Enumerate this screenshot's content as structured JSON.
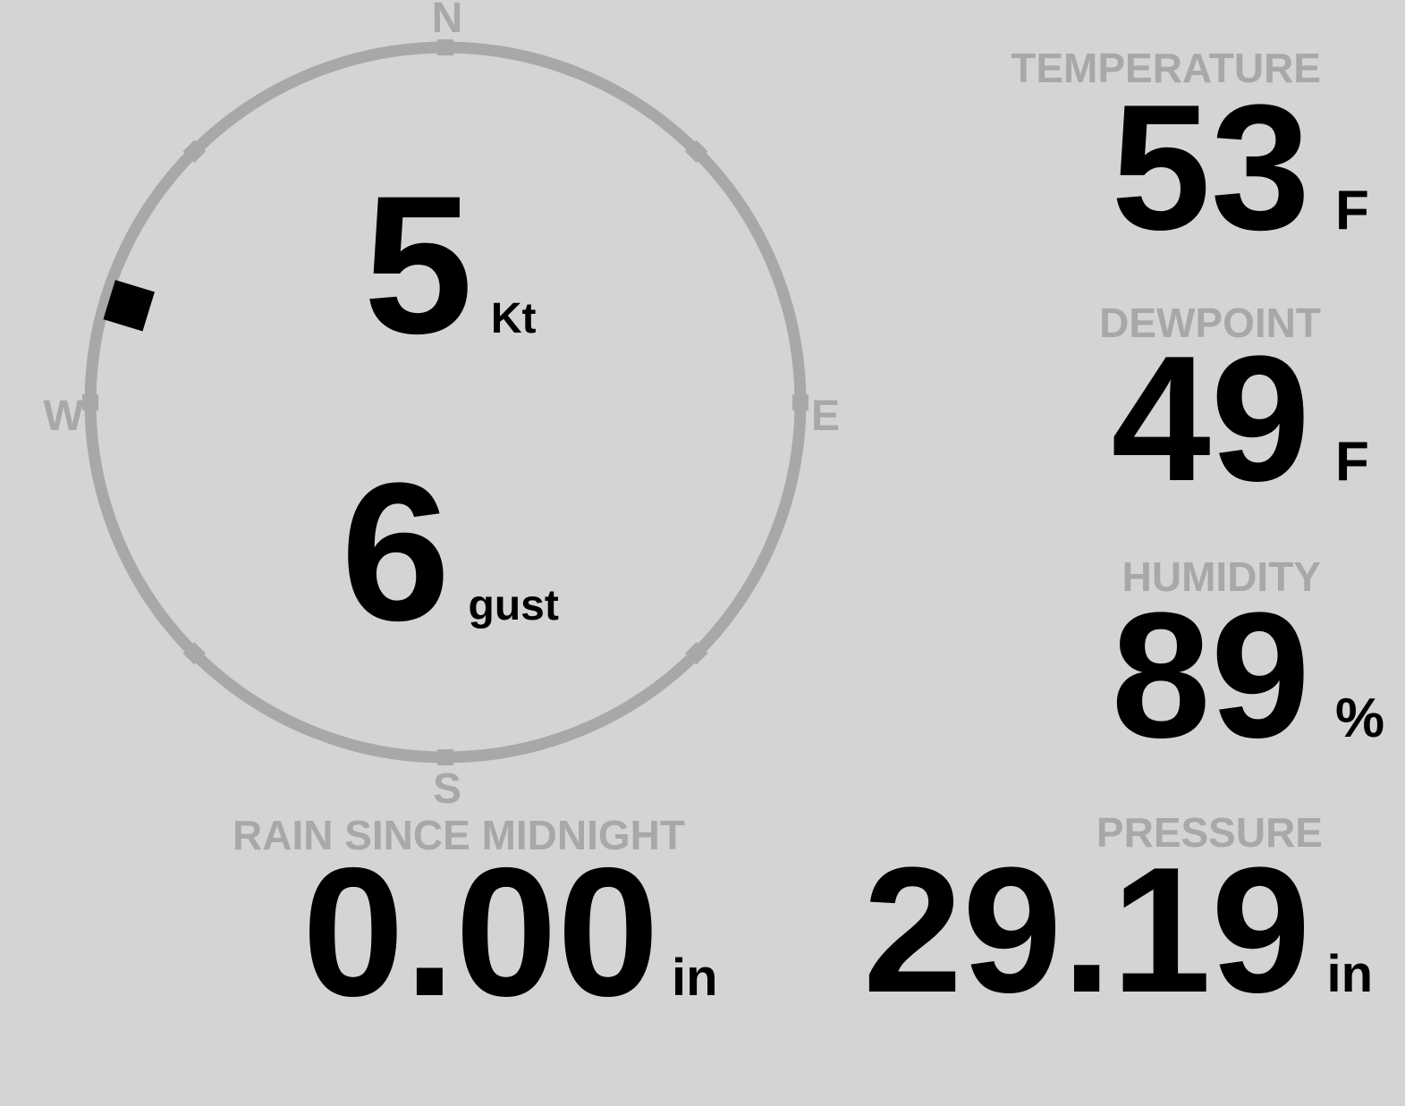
{
  "colors": {
    "background": "#d4d4d4",
    "muted": "#a8a8a8",
    "ink": "#000000"
  },
  "compass": {
    "north": "N",
    "east": "E",
    "south": "S",
    "west": "W",
    "wind_speed": "5",
    "wind_speed_unit": "Kt",
    "wind_gust": "6",
    "wind_gust_unit": "gust",
    "wind_direction_degrees": 287
  },
  "metrics": {
    "temperature": {
      "label": "TEMPERATURE",
      "value": "53",
      "unit": "F"
    },
    "dewpoint": {
      "label": "DEWPOINT",
      "value": "49",
      "unit": "F"
    },
    "humidity": {
      "label": "HUMIDITY",
      "value": "89",
      "unit": "%"
    },
    "rain": {
      "label": "RAIN SINCE MIDNIGHT",
      "value": "0.00",
      "unit": "in"
    },
    "pressure": {
      "label": "PRESSURE",
      "value": "29.19",
      "unit": "in"
    }
  }
}
